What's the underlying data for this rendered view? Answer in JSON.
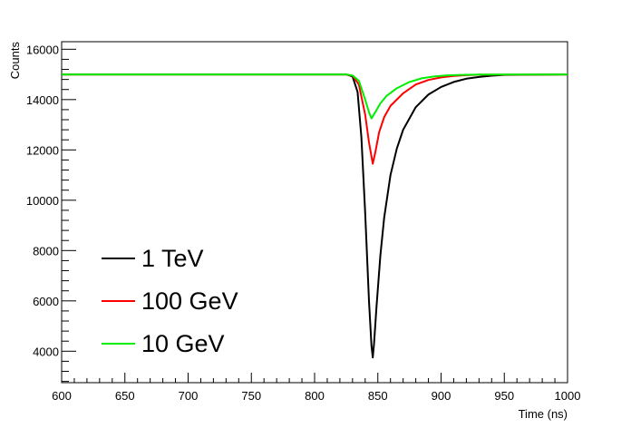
{
  "chart_data": {
    "type": "line",
    "xlabel": "Time (ns)",
    "ylabel": "Counts",
    "xlim": [
      600,
      1000
    ],
    "ylim": [
      2750,
      16300
    ],
    "x_ticks": [
      600,
      650,
      700,
      750,
      800,
      850,
      900,
      950,
      1000
    ],
    "y_ticks": [
      4000,
      6000,
      8000,
      10000,
      12000,
      14000,
      16000
    ],
    "grid": false,
    "legend_position": "bottom-left",
    "series": [
      {
        "name": "1 TeV",
        "color": "#000000",
        "x": [
          600,
          700,
          800,
          825,
          830,
          834,
          837,
          840,
          843,
          845,
          846,
          847,
          849,
          852,
          855,
          860,
          865,
          870,
          880,
          890,
          900,
          910,
          920,
          930,
          940,
          950,
          1000
        ],
        "y": [
          15000,
          15000,
          15000,
          15000,
          14920,
          14300,
          12500,
          9500,
          6000,
          4200,
          3750,
          4300,
          5800,
          7800,
          9300,
          11000,
          12050,
          12800,
          13700,
          14200,
          14500,
          14700,
          14830,
          14900,
          14950,
          14980,
          15000
        ]
      },
      {
        "name": "100 GeV",
        "color": "#ff0000",
        "x": [
          600,
          700,
          800,
          825,
          830,
          835,
          840,
          843,
          846,
          848,
          851,
          855,
          860,
          870,
          880,
          890,
          900,
          910,
          920,
          930,
          1000
        ],
        "y": [
          15000,
          15000,
          15000,
          15000,
          14950,
          14600,
          13400,
          12300,
          11450,
          11900,
          12700,
          13300,
          13750,
          14250,
          14600,
          14780,
          14880,
          14940,
          14970,
          14990,
          15000
        ]
      },
      {
        "name": "10 GeV",
        "color": "#00ee00",
        "x": [
          600,
          700,
          800,
          825,
          830,
          835,
          840,
          843,
          845,
          848,
          852,
          857,
          865,
          875,
          885,
          895,
          905,
          915,
          930,
          1000
        ],
        "y": [
          15000,
          15000,
          15000,
          15000,
          14960,
          14750,
          14000,
          13500,
          13250,
          13500,
          13850,
          14150,
          14450,
          14700,
          14850,
          14920,
          14960,
          14980,
          14995,
          15000
        ]
      }
    ]
  }
}
